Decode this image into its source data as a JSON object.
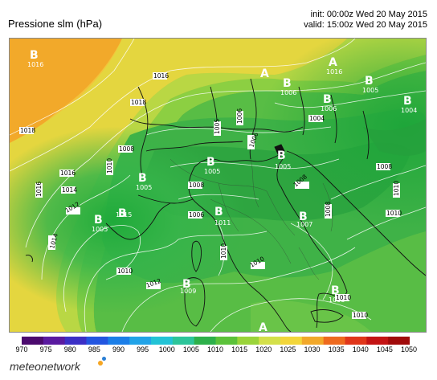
{
  "title": "Pressione slm (hPa)",
  "init": "init: 00:00z Wed 20 May 2015",
  "valid": "valid: 15:00z Wed 20 May 2015",
  "brand": "meteonetwork",
  "legend": {
    "ticks": [
      "970",
      "975",
      "980",
      "985",
      "990",
      "995",
      "1000",
      "1005",
      "1010",
      "1015",
      "1020",
      "1025",
      "1030",
      "1035",
      "1040",
      "1045",
      "1050"
    ],
    "colors": [
      "#4b0a6e",
      "#5a1aa0",
      "#3b2fc6",
      "#2255e0",
      "#1b7ee8",
      "#21a3e8",
      "#22c3d6",
      "#2cc59a",
      "#2db04a",
      "#5bc23a",
      "#9ad43a",
      "#d4e04a",
      "#f3d63a",
      "#f2a82a",
      "#ee6a1e",
      "#e0361a",
      "#c41414",
      "#a00a0a"
    ]
  },
  "pressure_systems": [
    {
      "type": "B",
      "value": "1016"
    },
    {
      "type": "B",
      "value": "1005"
    },
    {
      "type": "B",
      "value": "1005"
    },
    {
      "type": "B",
      "value": "1005"
    },
    {
      "type": "B",
      "value": "1006"
    },
    {
      "type": "B",
      "value": "1006"
    },
    {
      "type": "B",
      "value": "1005"
    },
    {
      "type": "B",
      "value": "1005"
    },
    {
      "type": "B",
      "value": "1004"
    },
    {
      "type": "B",
      "value": "1009"
    },
    {
      "type": "B",
      "value": "1007"
    },
    {
      "type": "B",
      "value": "1008"
    },
    {
      "type": "A",
      "value": ""
    },
    {
      "type": "A",
      "value": "1016"
    },
    {
      "type": "A",
      "value": ""
    },
    {
      "type": "B",
      "value": "1015"
    },
    {
      "type": "B",
      "value": "1011"
    }
  ],
  "isobar_labels": [
    "1016",
    "1018",
    "1018",
    "1016",
    "1016",
    "1014",
    "1012",
    "1014",
    "1008",
    "1010",
    "1008",
    "1005",
    "1006",
    "1006",
    "1008",
    "1010",
    "1008",
    "1010",
    "1008",
    "1010",
    "1012",
    "1010",
    "1010",
    "1004",
    "1006",
    "1010",
    "1010"
  ]
}
